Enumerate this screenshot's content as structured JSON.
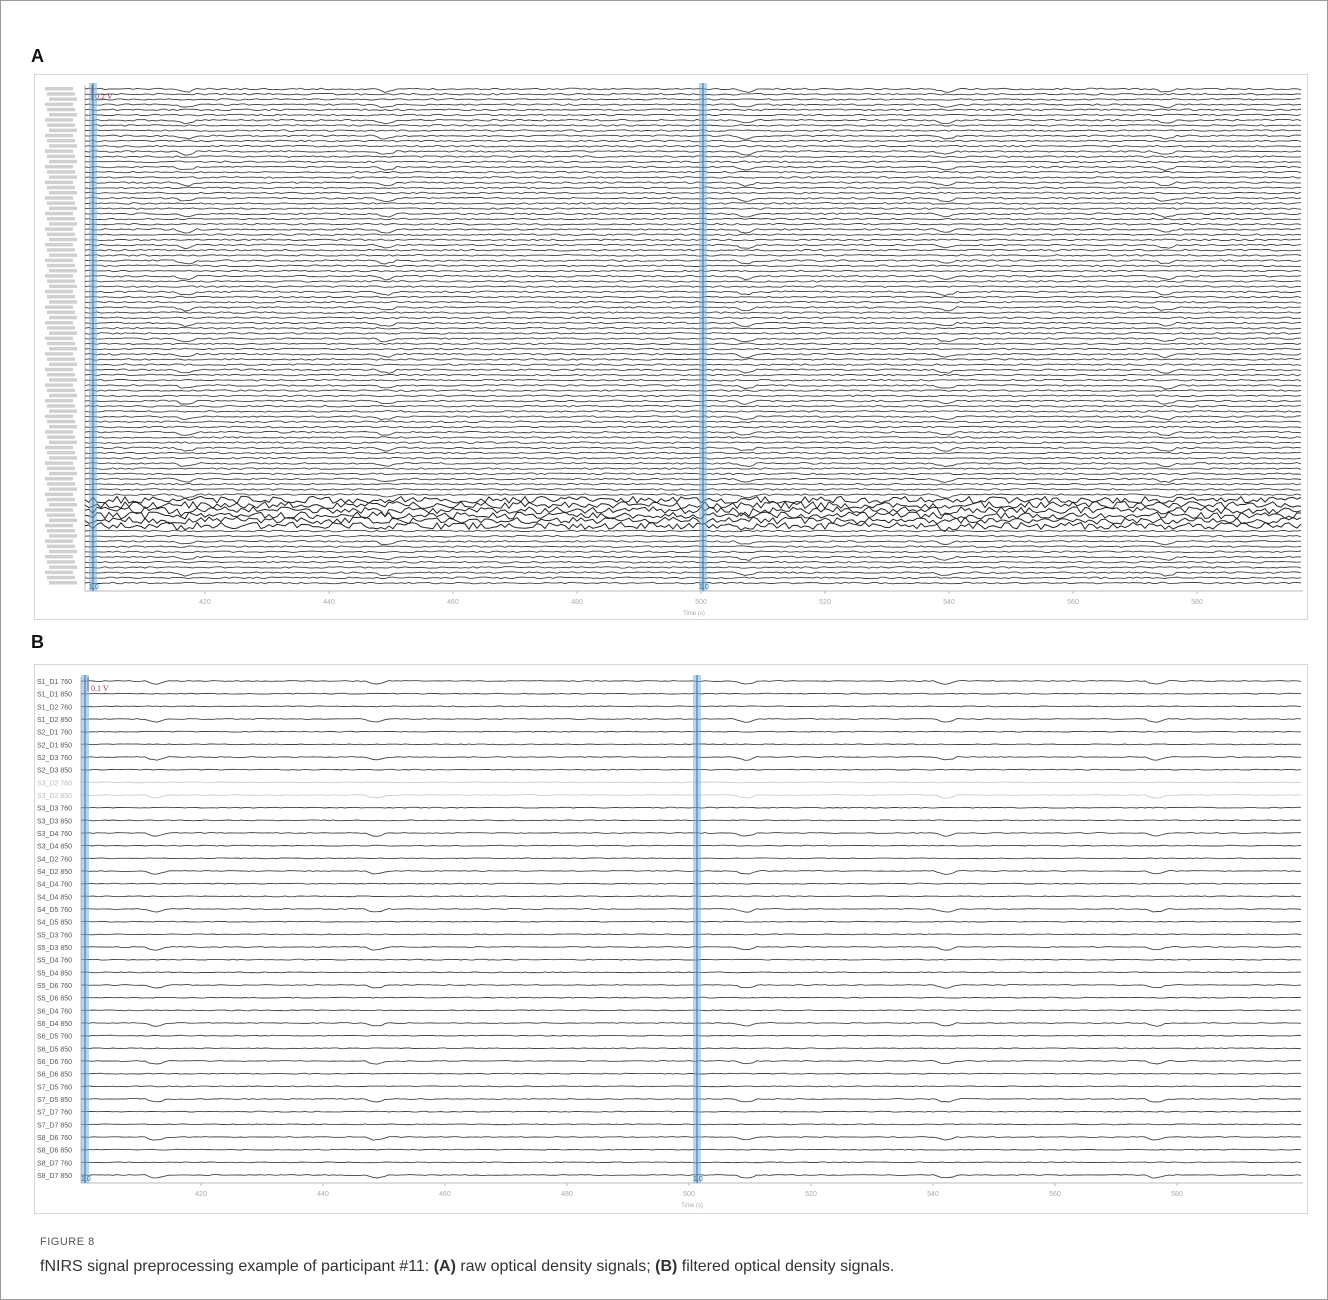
{
  "panels": {
    "a": {
      "letter": "A",
      "scale_label": "0.2 V",
      "x_ticks": [
        "420",
        "440",
        "460",
        "480",
        "500",
        "520",
        "540",
        "560",
        "580"
      ],
      "x_axis_label": "Time (s)",
      "marker_labels": [
        "1.0",
        "1.0"
      ]
    },
    "b": {
      "letter": "B",
      "scale_label": "0.1 V",
      "channels": [
        "S1_D1 760",
        "S1_D1 850",
        "S1_D2 760",
        "S1_D2 850",
        "S2_D1 760",
        "S2_D1 850",
        "S2_D3 760",
        "S2_D3 850",
        "S3_D2 760",
        "S3_D2 850",
        "S3_D3 760",
        "S3_D3 850",
        "S3_D4 760",
        "S3_D4 850",
        "S4_D2 760",
        "S4_D2 850",
        "S4_D4 760",
        "S4_D4 850",
        "S4_D5 760",
        "S4_D5 850",
        "S5_D3 760",
        "S5_D3 850",
        "S5_D4 760",
        "S5_D4 850",
        "S5_D6 760",
        "S5_D6 850",
        "S6_D4 760",
        "S6_D4 850",
        "S6_D5 760",
        "S6_D5 850",
        "S6_D6 760",
        "S6_D6 850",
        "S7_D5 760",
        "S7_D5 850",
        "S7_D7 760",
        "S7_D7 850",
        "S8_D6 760",
        "S8_D6 850",
        "S8_D7 760",
        "S8_D7 850"
      ],
      "x_ticks": [
        "420",
        "440",
        "460",
        "480",
        "500",
        "520",
        "540",
        "560",
        "580"
      ],
      "x_axis_label": "Time (s)",
      "marker_labels": [
        "1.0",
        "1.0"
      ]
    }
  },
  "caption": {
    "label": "FIGURE 8",
    "text_before": "fNIRS signal preprocessing example of participant #11: ",
    "a_label": "(A)",
    "a_text": " raw optical density signals; ",
    "b_label": "(B)",
    "b_text": " filtered optical density signals."
  }
}
